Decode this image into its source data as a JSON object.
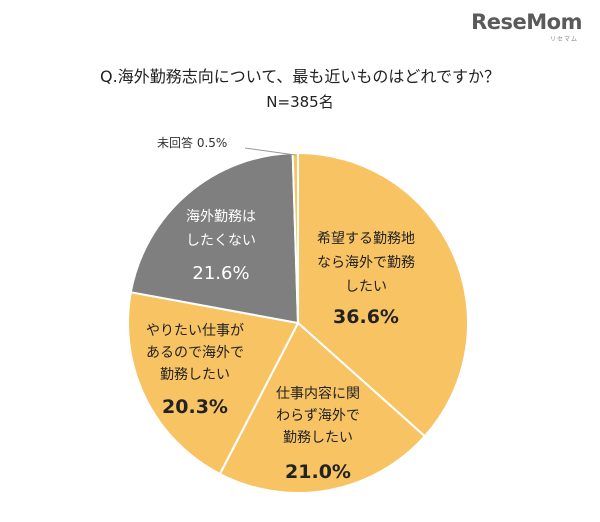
{
  "logo": {
    "text": "ReseMom",
    "kana": "リセマム"
  },
  "header": {
    "title": "Q.海外勤務志向について、最も近いものはどれですか？",
    "subtitle": "N=385名"
  },
  "chart_data": {
    "type": "pie",
    "title": "Q.海外勤務志向について、最も近いものはどれですか？",
    "subtitle": "N=385名",
    "start_angle_deg": 0,
    "direction": "clockwise",
    "slices": [
      {
        "label_lines": [
          "希望する勤務地",
          "なら海外で勤務",
          "したい"
        ],
        "value": 36.6,
        "value_label": "36.6%",
        "color": "#F8C363",
        "text_color": "#222222",
        "label_bold": false,
        "value_bold": true
      },
      {
        "label_lines": [
          "仕事内容に関",
          "わらず海外で",
          "勤務したい"
        ],
        "value": 21.0,
        "value_label": "21.0%",
        "color": "#F8C363",
        "text_color": "#222222",
        "label_bold": false,
        "value_bold": true
      },
      {
        "label_lines": [
          "やりたい仕事が",
          "あるので海外で",
          "勤務したい"
        ],
        "value": 20.3,
        "value_label": "20.3%",
        "color": "#F8C363",
        "text_color": "#222222",
        "label_bold": false,
        "value_bold": true
      },
      {
        "label_lines": [
          "海外勤務は",
          "したくない"
        ],
        "value": 21.6,
        "value_label": "21.6%",
        "color": "#7F7F7F",
        "text_color": "#FFFFFF",
        "label_bold": false,
        "value_bold": false
      },
      {
        "label_lines": [
          "未回答"
        ],
        "value": 0.5,
        "value_label": "0.5%",
        "color": "#F8C363",
        "text_color": "#222222",
        "label_bold": false,
        "value_bold": false,
        "outside_label": "未回答 0.5%"
      }
    ]
  }
}
